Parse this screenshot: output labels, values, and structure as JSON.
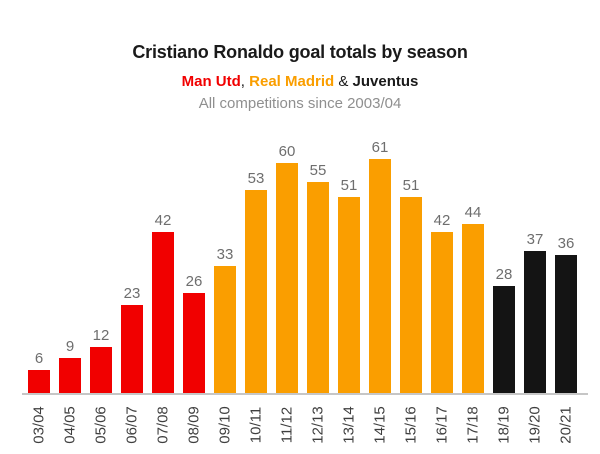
{
  "header": {
    "title": "Cristiano Ronaldo goal totals by season",
    "legend_parts": [
      {
        "name": "legend-man-utd",
        "text": "Man Utd",
        "color": "#f10000",
        "bold": true
      },
      {
        "name": "legend-separator-1",
        "text": ", ",
        "color": "#1a1a1a",
        "bold": false
      },
      {
        "name": "legend-real-madrid",
        "text": "Real Madrid",
        "color": "#fa9e00",
        "bold": true
      },
      {
        "name": "legend-separator-2",
        "text": " & ",
        "color": "#1a1a1a",
        "bold": false
      },
      {
        "name": "legend-juventus",
        "text": "Juventus",
        "color": "#1a1a1a",
        "bold": true
      }
    ],
    "tagline": "All competitions since 2003/04"
  },
  "chart_data": {
    "type": "bar",
    "title": "Cristiano Ronaldo goal totals by season",
    "subtitle_line1": "Man Utd, Real Madrid & Juventus",
    "subtitle_line2": "All competitions since 2003/04",
    "categories": [
      "03/04",
      "04/05",
      "05/06",
      "06/07",
      "07/08",
      "08/09",
      "09/10",
      "10/11",
      "11/12",
      "12/13",
      "13/14",
      "14/15",
      "15/16",
      "16/17",
      "17/18",
      "18/19",
      "19/20",
      "20/21"
    ],
    "values": [
      6,
      9,
      12,
      23,
      42,
      26,
      33,
      53,
      60,
      55,
      51,
      61,
      51,
      42,
      44,
      28,
      37,
      36
    ],
    "teams": [
      "Man Utd",
      "Man Utd",
      "Man Utd",
      "Man Utd",
      "Man Utd",
      "Man Utd",
      "Real Madrid",
      "Real Madrid",
      "Real Madrid",
      "Real Madrid",
      "Real Madrid",
      "Real Madrid",
      "Real Madrid",
      "Real Madrid",
      "Real Madrid",
      "Juventus",
      "Juventus",
      "Juventus"
    ],
    "team_colors": {
      "Man Utd": "#f10000",
      "Real Madrid": "#fa9e00",
      "Juventus": "#141414"
    },
    "value_label_color": "#6e6e6e",
    "axis_tick_color": "#3f3f3f",
    "axis_line_color": "#c6c6c6",
    "xlabel": "",
    "ylabel": "",
    "ylim": [
      0,
      61
    ],
    "grid": false,
    "value_labels_shown": true,
    "x_tick_rotation": -90,
    "legend_position": "below-title"
  }
}
